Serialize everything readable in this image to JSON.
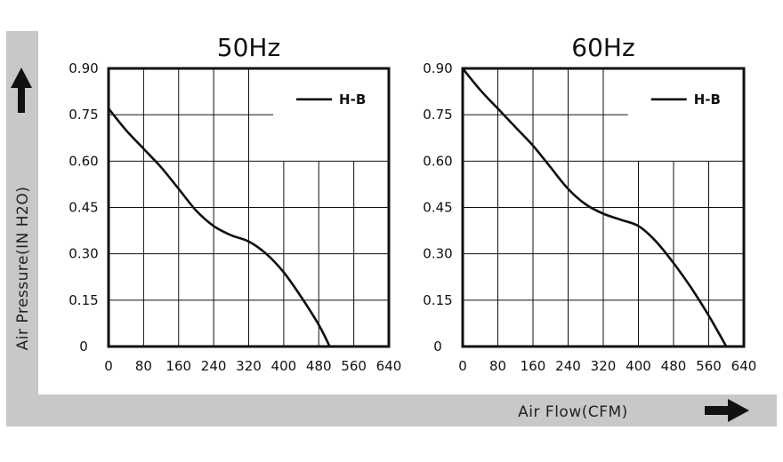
{
  "y_axis_label": "Air Pressure(IN H2O)",
  "x_axis_label": "Air Flow(CFM)",
  "colors": {
    "band": "#c8c8c8",
    "line": "#111111",
    "grid": "#111111",
    "background": "#ffffff"
  },
  "icons": {
    "y_arrow": "arrow-up-icon",
    "x_arrow": "arrow-right-icon"
  },
  "chart_data": [
    {
      "type": "line",
      "title": "50Hz",
      "xlabel": "Air Flow(CFM)",
      "ylabel": "Air Pressure(IN H2O)",
      "xlim": [
        0,
        640
      ],
      "ylim": [
        0,
        0.9
      ],
      "x_ticks": [
        "0",
        "80",
        "160",
        "240",
        "320",
        "400",
        "480",
        "560",
        "640"
      ],
      "y_ticks": [
        "0",
        "0.15",
        "0.30",
        "0.45",
        "0.60",
        "0.75",
        "0.90"
      ],
      "grid": true,
      "legend_position": "top-right",
      "series": [
        {
          "name": "H-B",
          "x": [
            0,
            40,
            80,
            120,
            160,
            200,
            240,
            280,
            320,
            360,
            400,
            440,
            480,
            505
          ],
          "y": [
            0.77,
            0.7,
            0.64,
            0.58,
            0.51,
            0.44,
            0.39,
            0.36,
            0.34,
            0.3,
            0.24,
            0.16,
            0.07,
            0.0
          ]
        }
      ]
    },
    {
      "type": "line",
      "title": "60Hz",
      "xlabel": "Air Flow(CFM)",
      "ylabel": "Air Pressure(IN H2O)",
      "xlim": [
        0,
        640
      ],
      "ylim": [
        0,
        0.9
      ],
      "x_ticks": [
        "0",
        "80",
        "160",
        "240",
        "320",
        "400",
        "480",
        "560",
        "640"
      ],
      "y_ticks": [
        "0",
        "0.15",
        "0.30",
        "0.45",
        "0.60",
        "0.75",
        "0.90"
      ],
      "grid": true,
      "legend_position": "top-right",
      "series": [
        {
          "name": "H-B",
          "x": [
            0,
            40,
            80,
            120,
            160,
            200,
            240,
            280,
            320,
            360,
            400,
            440,
            480,
            520,
            560,
            600
          ],
          "y": [
            0.9,
            0.83,
            0.77,
            0.71,
            0.65,
            0.58,
            0.51,
            0.46,
            0.43,
            0.41,
            0.39,
            0.34,
            0.27,
            0.19,
            0.1,
            0.0
          ]
        }
      ]
    }
  ]
}
